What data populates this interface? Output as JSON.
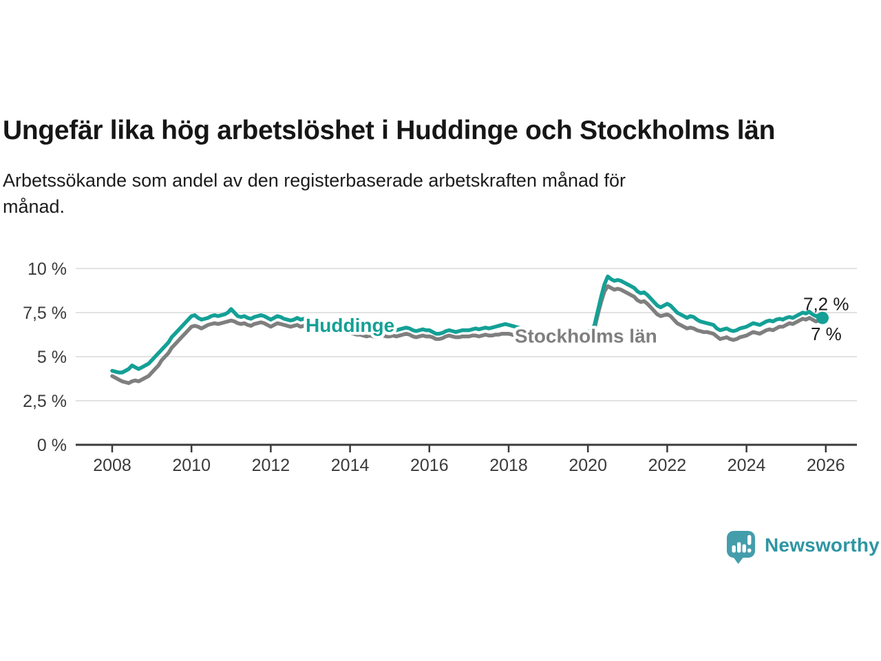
{
  "header": {
    "title": "Ungefär lika hög arbetslöshet i Huddinge och Stockholms län",
    "subtitle_lines": [
      "Arbetssökande som andel av den registerbaserade arbetskraften månad för",
      "månad."
    ]
  },
  "chart_data": {
    "type": "line",
    "title": "Ungefär lika hög arbetslöshet i Huddinge och Stockholms län",
    "subtitle": "Arbetssökande som andel av den registerbaserade arbetskraften månad för månad.",
    "x_start_year": 2008,
    "x_months_per_point": 1,
    "x_ticks": [
      2008,
      2010,
      2012,
      2014,
      2016,
      2018,
      2020,
      2022,
      2024,
      2026
    ],
    "xlim": [
      2007.5,
      2026.8
    ],
    "ylim": [
      0,
      10.5
    ],
    "grid": "horizontal-only",
    "legend_position": "inline-labels-on-lines",
    "y_ticks": [
      {
        "value": 0,
        "label": "0 %"
      },
      {
        "value": 2.5,
        "label": "2,5 %"
      },
      {
        "value": 5,
        "label": "5 %"
      },
      {
        "value": 7.5,
        "label": "7,5 %"
      },
      {
        "value": 10,
        "label": "10 %"
      }
    ],
    "series": [
      {
        "name": "Huddinge",
        "color": "#14a096",
        "end_label": "7,2 %",
        "end_dot": true,
        "label": {
          "x_year": 2014.0,
          "y_value": 6.75
        },
        "values": [
          4.2,
          4.15,
          4.1,
          4.1,
          4.2,
          4.3,
          4.5,
          4.4,
          4.3,
          4.4,
          4.5,
          4.6,
          4.8,
          5.0,
          5.2,
          5.4,
          5.6,
          5.8,
          6.1,
          6.3,
          6.5,
          6.7,
          6.9,
          7.1,
          7.3,
          7.35,
          7.2,
          7.1,
          7.15,
          7.2,
          7.3,
          7.35,
          7.3,
          7.35,
          7.4,
          7.5,
          7.7,
          7.5,
          7.3,
          7.25,
          7.3,
          7.2,
          7.15,
          7.25,
          7.3,
          7.35,
          7.3,
          7.2,
          7.1,
          7.2,
          7.3,
          7.25,
          7.15,
          7.1,
          7.05,
          7.1,
          7.2,
          7.1,
          7.15,
          7.1,
          7.05,
          7.1,
          7.1,
          7.05,
          7.0,
          6.95,
          7.0,
          6.9,
          6.85,
          6.8,
          6.75,
          6.7,
          6.7,
          6.65,
          6.6,
          6.6,
          6.55,
          6.5,
          6.55,
          6.5,
          6.45,
          6.5,
          6.55,
          6.5,
          6.5,
          6.55,
          6.5,
          6.55,
          6.6,
          6.65,
          6.6,
          6.5,
          6.45,
          6.5,
          6.55,
          6.5,
          6.5,
          6.4,
          6.3,
          6.3,
          6.35,
          6.45,
          6.5,
          6.45,
          6.4,
          6.45,
          6.5,
          6.5,
          6.5,
          6.55,
          6.6,
          6.55,
          6.6,
          6.65,
          6.6,
          6.65,
          6.7,
          6.75,
          6.8,
          6.85,
          6.8,
          6.75,
          6.7,
          6.65,
          6.6,
          6.55,
          6.5,
          6.45,
          6.4,
          6.35,
          6.3,
          6.3,
          6.3,
          6.25,
          6.2,
          6.2,
          6.25,
          6.3,
          6.3,
          6.25,
          6.2,
          6.25,
          6.3,
          6.35,
          6.4,
          6.5,
          6.8,
          7.6,
          8.4,
          9.1,
          9.55,
          9.4,
          9.3,
          9.35,
          9.3,
          9.2,
          9.1,
          9.0,
          8.9,
          8.7,
          8.6,
          8.65,
          8.5,
          8.3,
          8.1,
          7.9,
          7.8,
          7.9,
          8.0,
          7.9,
          7.7,
          7.5,
          7.4,
          7.3,
          7.2,
          7.3,
          7.25,
          7.1,
          7.0,
          6.95,
          6.9,
          6.85,
          6.8,
          6.6,
          6.5,
          6.55,
          6.6,
          6.5,
          6.45,
          6.5,
          6.6,
          6.65,
          6.7,
          6.8,
          6.9,
          6.85,
          6.8,
          6.9,
          7.0,
          7.05,
          7.0,
          7.1,
          7.15,
          7.1,
          7.2,
          7.25,
          7.2,
          7.3,
          7.4,
          7.5,
          7.45,
          7.55,
          7.4,
          7.3,
          7.35,
          7.2
        ]
      },
      {
        "name": "Stockholms län",
        "color": "#7f7f7f",
        "end_label": "7 %",
        "end_dot": false,
        "label": {
          "x_year": 2019.95,
          "y_value": 6.16
        },
        "values": [
          3.9,
          3.8,
          3.7,
          3.6,
          3.55,
          3.5,
          3.6,
          3.65,
          3.6,
          3.7,
          3.8,
          3.9,
          4.1,
          4.3,
          4.5,
          4.8,
          5.0,
          5.2,
          5.5,
          5.7,
          5.9,
          6.1,
          6.3,
          6.5,
          6.7,
          6.75,
          6.7,
          6.6,
          6.7,
          6.8,
          6.85,
          6.9,
          6.85,
          6.9,
          6.95,
          7.0,
          7.05,
          7.0,
          6.9,
          6.85,
          6.9,
          6.8,
          6.75,
          6.85,
          6.9,
          6.95,
          6.9,
          6.8,
          6.7,
          6.8,
          6.9,
          6.85,
          6.8,
          6.75,
          6.7,
          6.75,
          6.8,
          6.7,
          6.75,
          6.8,
          6.7,
          6.75,
          6.8,
          6.75,
          6.7,
          6.65,
          6.6,
          6.55,
          6.5,
          6.45,
          6.4,
          6.35,
          6.35,
          6.3,
          6.25,
          6.25,
          6.2,
          6.15,
          6.2,
          6.15,
          6.1,
          6.15,
          6.2,
          6.15,
          6.15,
          6.2,
          6.15,
          6.2,
          6.25,
          6.3,
          6.25,
          6.15,
          6.1,
          6.15,
          6.2,
          6.15,
          6.15,
          6.1,
          6.0,
          6.0,
          6.05,
          6.15,
          6.2,
          6.15,
          6.1,
          6.1,
          6.15,
          6.15,
          6.15,
          6.2,
          6.2,
          6.15,
          6.2,
          6.25,
          6.2,
          6.2,
          6.25,
          6.25,
          6.3,
          6.3,
          6.3,
          6.25,
          6.2,
          6.15,
          6.1,
          6.05,
          6.0,
          5.95,
          5.9,
          5.9,
          5.95,
          6.0,
          6.0,
          5.95,
          5.9,
          5.9,
          5.95,
          6.0,
          6.05,
          6.0,
          5.95,
          6.0,
          6.05,
          6.1,
          6.2,
          6.3,
          6.6,
          7.4,
          8.1,
          8.7,
          9.0,
          8.9,
          8.8,
          8.85,
          8.8,
          8.7,
          8.6,
          8.5,
          8.4,
          8.2,
          8.1,
          8.15,
          8.0,
          7.8,
          7.6,
          7.4,
          7.3,
          7.35,
          7.4,
          7.3,
          7.1,
          6.9,
          6.8,
          6.7,
          6.6,
          6.65,
          6.6,
          6.5,
          6.45,
          6.4,
          6.4,
          6.35,
          6.3,
          6.15,
          6.0,
          6.05,
          6.1,
          6.0,
          5.95,
          6.0,
          6.1,
          6.15,
          6.2,
          6.3,
          6.4,
          6.35,
          6.3,
          6.4,
          6.5,
          6.55,
          6.5,
          6.6,
          6.7,
          6.7,
          6.8,
          6.9,
          6.85,
          6.95,
          7.05,
          7.15,
          7.1,
          7.2,
          7.1,
          7.0,
          7.05,
          7.0
        ]
      }
    ]
  },
  "branding": {
    "logo_text": "Newsworthy",
    "logo_text_color": "#2e95a3",
    "logo_icon_color": "#449dab"
  }
}
